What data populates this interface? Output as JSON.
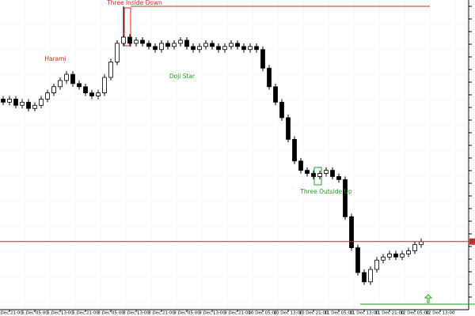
{
  "chart_data": {
    "type": "candlestick",
    "categories": [
      null,
      "4 Dec 21:00",
      null,
      null,
      null,
      "5 Dec 05:00",
      null,
      null,
      null,
      "5 Dec 13:00",
      null,
      null,
      null,
      "5 Dec 21:00",
      null,
      null,
      null,
      "8 Dec 05:00",
      null,
      null,
      null,
      "8 Dec 13:00",
      null,
      null,
      null,
      "8 Dec 21:00",
      null,
      null,
      null,
      "9 Dec 05:00",
      null,
      null,
      null,
      "9 Dec 13:00",
      null,
      null,
      null,
      "9 Dec 21:00",
      null,
      null,
      null,
      "10 Dec 05:00",
      null,
      null,
      null,
      "10 Dec 13:00",
      null,
      null,
      null,
      "10 Dec 21:00",
      null,
      null,
      null,
      "11 Dec 05:00",
      null,
      null,
      null,
      "11 Dec 13:00",
      null,
      null,
      null,
      "11 Dec 21:00",
      null,
      null,
      null,
      "12 Dec 05:00",
      null,
      null,
      null,
      "12 Dec 13:00"
    ],
    "open": [
      68,
      67,
      68,
      66,
      67,
      65,
      66,
      68,
      70,
      72,
      74,
      76,
      73,
      72,
      70,
      69,
      70,
      75,
      80,
      86,
      88,
      86,
      87,
      86,
      85,
      84,
      86,
      85,
      86,
      87,
      85,
      84,
      85,
      86,
      85,
      84,
      85,
      86,
      85,
      84,
      85,
      84,
      78,
      72,
      67,
      62,
      55,
      48,
      45,
      44,
      43,
      44,
      45,
      43,
      42,
      30,
      20,
      12,
      9,
      13,
      16,
      17,
      18,
      17,
      18,
      19,
      21,
      null,
      null,
      null
    ],
    "high": [
      69,
      69,
      69,
      68,
      68,
      67,
      69,
      71,
      73,
      75,
      77,
      77,
      74,
      73,
      71,
      71,
      76,
      81,
      87,
      98,
      89,
      88,
      88,
      87,
      86,
      87,
      87,
      87,
      88,
      88,
      86,
      86,
      87,
      87,
      86,
      86,
      87,
      87,
      86,
      86,
      86,
      85,
      79,
      73,
      68,
      63,
      56,
      49,
      46,
      45,
      45,
      46,
      46,
      44,
      43,
      31,
      21,
      13,
      14,
      17,
      18,
      19,
      19,
      19,
      20,
      22,
      23,
      null,
      null,
      null
    ],
    "low": [
      66,
      66,
      65,
      65,
      64,
      64,
      65,
      67,
      69,
      71,
      73,
      72,
      71,
      69,
      68,
      68,
      69,
      74,
      79,
      85,
      85,
      85,
      85,
      84,
      83,
      83,
      84,
      84,
      85,
      84,
      83,
      83,
      84,
      84,
      83,
      83,
      84,
      84,
      83,
      83,
      83,
      77,
      71,
      66,
      61,
      54,
      47,
      44,
      43,
      42,
      42,
      43,
      42,
      41,
      29,
      19,
      11,
      8,
      8,
      12,
      15,
      16,
      16,
      16,
      17,
      18,
      20,
      null,
      null,
      null
    ],
    "close": [
      67,
      68,
      66,
      67,
      65,
      66,
      68,
      70,
      72,
      74,
      76,
      73,
      72,
      70,
      69,
      70,
      75,
      80,
      86,
      88,
      86,
      87,
      86,
      85,
      84,
      86,
      85,
      86,
      87,
      85,
      84,
      85,
      86,
      85,
      84,
      85,
      86,
      85,
      84,
      85,
      84,
      78,
      72,
      67,
      62,
      55,
      48,
      45,
      44,
      43,
      44,
      45,
      43,
      42,
      30,
      20,
      12,
      9,
      13,
      16,
      17,
      18,
      17,
      18,
      19,
      21,
      22,
      null,
      null,
      null
    ],
    "ylim": [
      0,
      100
    ],
    "annotations": [
      "Three Inside Down",
      "Harami",
      "Doji Star",
      "Three Outside Up"
    ]
  }
}
